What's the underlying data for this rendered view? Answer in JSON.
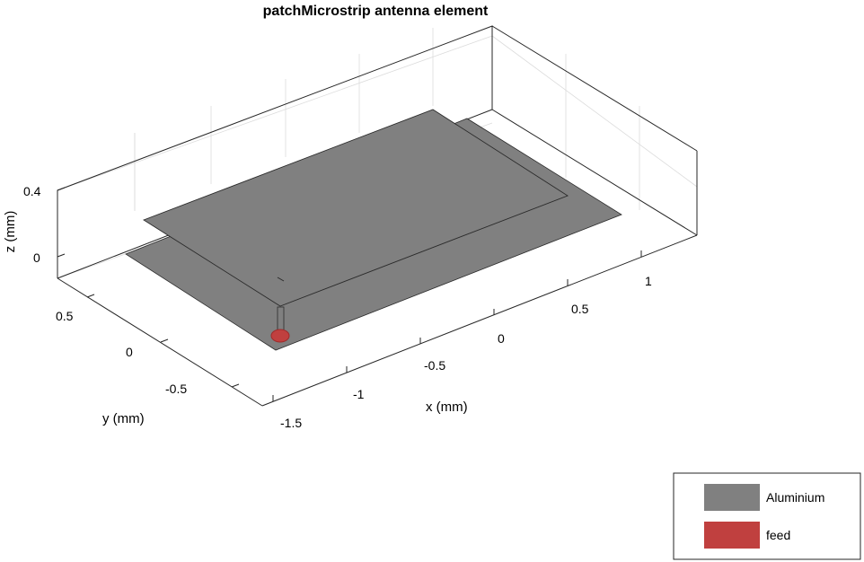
{
  "title": "patchMicrostrip antenna element",
  "axes": {
    "x": {
      "label": "x (mm)",
      "ticks": [
        "-1.5",
        "-1",
        "-0.5",
        "0",
        "0.5",
        "1"
      ]
    },
    "y": {
      "label": "y (mm)",
      "ticks": [
        "0.5",
        "0",
        "-0.5"
      ]
    },
    "z": {
      "label": "z (mm)",
      "ticks": [
        "0.4",
        "0"
      ]
    }
  },
  "legend": {
    "placement": "bottom-right",
    "items": [
      {
        "label": "Aluminium",
        "color": "#808080"
      },
      {
        "label": "feed",
        "color": "#c0403f"
      }
    ]
  },
  "colors": {
    "metal": "#808080",
    "feed": "#c0403f",
    "feed_dark": "#9e2b2b"
  }
}
